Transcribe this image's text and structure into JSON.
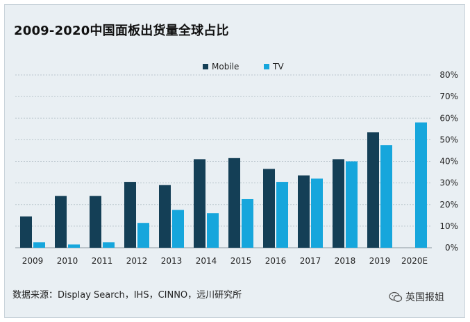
{
  "title": "2009-2020中国面板出货量全球占比",
  "source": "数据来源：Display Search，IHS，CINNO，远川研究所",
  "watermark": "英国报姐",
  "colors": {
    "mobile": "#143f56",
    "tv": "#16a6dc",
    "background": "#e9eff3",
    "grid": "#b9c5cc"
  },
  "chart_data": {
    "type": "bar",
    "categories": [
      "2009",
      "2010",
      "2011",
      "2012",
      "2013",
      "2014",
      "2015",
      "2016",
      "2017",
      "2018",
      "2019",
      "2020E"
    ],
    "series": [
      {
        "name": "Mobile",
        "values": [
          14.5,
          24,
          24,
          30.5,
          29,
          41,
          41.5,
          36.5,
          33.5,
          41,
          53.5,
          null
        ]
      },
      {
        "name": "TV",
        "values": [
          2.5,
          1.5,
          2.5,
          11.5,
          17.5,
          16,
          22.5,
          30.5,
          32,
          40,
          47.5,
          58
        ]
      }
    ],
    "y_ticks": [
      "0%",
      "10%",
      "20%",
      "30%",
      "40%",
      "50%",
      "60%",
      "70%",
      "80%"
    ],
    "ylim": [
      0,
      80
    ],
    "y_axis_position": "right",
    "legend_position": "top-center",
    "grid": true
  }
}
